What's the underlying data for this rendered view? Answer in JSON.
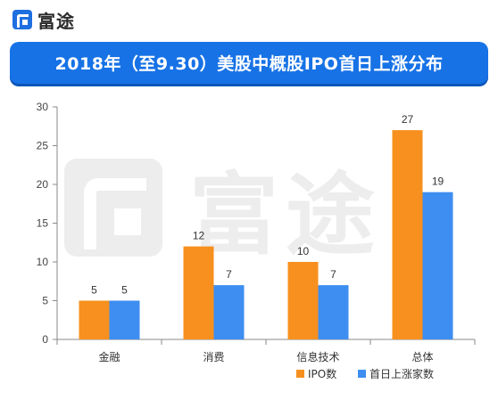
{
  "brand": {
    "name": "富途",
    "logo": "futu-logo-icon"
  },
  "chart_data": {
    "type": "bar",
    "title": "2018年（至9.30）美股中概股IPO首日上涨分布",
    "categories": [
      "金融",
      "消费",
      "信息技术",
      "总体"
    ],
    "series": [
      {
        "name": "IPO数",
        "values": [
          5,
          12,
          10,
          27
        ],
        "color": "#f7901e"
      },
      {
        "name": "首日上涨家数",
        "values": [
          5,
          7,
          7,
          19
        ],
        "color": "#3d8ef0"
      }
    ],
    "ylim": [
      0,
      30
    ],
    "yticks": [
      0,
      5,
      10,
      15,
      20,
      25,
      30
    ],
    "grid": false,
    "legend": "bottom-right",
    "xlabel": "",
    "ylabel": ""
  }
}
